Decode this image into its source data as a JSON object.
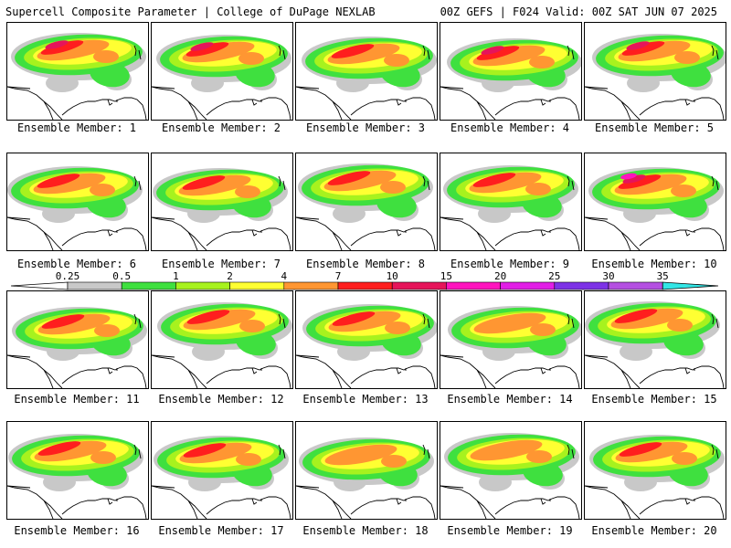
{
  "header": {
    "left": "Supercell Composite Parameter | College of DuPage NEXLAB",
    "right": "00Z GEFS | F024 Valid: 00Z SAT JUN 07 2025"
  },
  "legend": {
    "labels": [
      "0.25",
      "0.5",
      "1",
      "2",
      "4",
      "7",
      "10",
      "15",
      "20",
      "25",
      "30",
      "35"
    ],
    "colors": [
      "#c8c8c8",
      "#3fe03f",
      "#a7f21e",
      "#ffff32",
      "#ff9632",
      "#ff1e1e",
      "#e6145a",
      "#ff14be",
      "#e11ee6",
      "#7d32e6",
      "#b450e1",
      "#32e6e6"
    ]
  },
  "members": [
    {
      "caption": "Ensemble Member: 1",
      "peak": 3,
      "selected": false
    },
    {
      "caption": "Ensemble Member: 2",
      "peak": 3,
      "selected": false
    },
    {
      "caption": "Ensemble Member: 3",
      "peak": 2,
      "selected": false
    },
    {
      "caption": "Ensemble Member: 4",
      "peak": 3,
      "selected": false
    },
    {
      "caption": "Ensemble Member: 5",
      "peak": 3,
      "selected": false
    },
    {
      "caption": "Ensemble Member: 6",
      "peak": 2,
      "selected": false
    },
    {
      "caption": "Ensemble Member: 7",
      "peak": 2,
      "selected": false
    },
    {
      "caption": "Ensemble Member: 8",
      "peak": 2,
      "selected": false
    },
    {
      "caption": "Ensemble Member: 9",
      "peak": 2,
      "selected": false
    },
    {
      "caption": "Ensemble Member: 10",
      "peak": 4,
      "selected": false
    },
    {
      "caption": "Ensemble Member: 11",
      "peak": 2,
      "selected": false
    },
    {
      "caption": "Ensemble Member: 12",
      "peak": 2,
      "selected": false
    },
    {
      "caption": "Ensemble Member: 13",
      "peak": 2,
      "selected": false
    },
    {
      "caption": "Ensemble Member: 14",
      "peak": 1,
      "selected": false
    },
    {
      "caption": "Ensemble Member: 15",
      "peak": 2,
      "selected": false
    },
    {
      "caption": "Ensemble Member: 16",
      "peak": 2,
      "selected": false
    },
    {
      "caption": "Ensemble Member: 17",
      "peak": 2,
      "selected": false
    },
    {
      "caption": "Ensemble Member: 18",
      "peak": 1,
      "selected": false
    },
    {
      "caption": "Ensemble Member: 19",
      "peak": 1,
      "selected": false
    },
    {
      "caption": "Ensemble Member: 20",
      "peak": 2,
      "selected": true
    }
  ]
}
